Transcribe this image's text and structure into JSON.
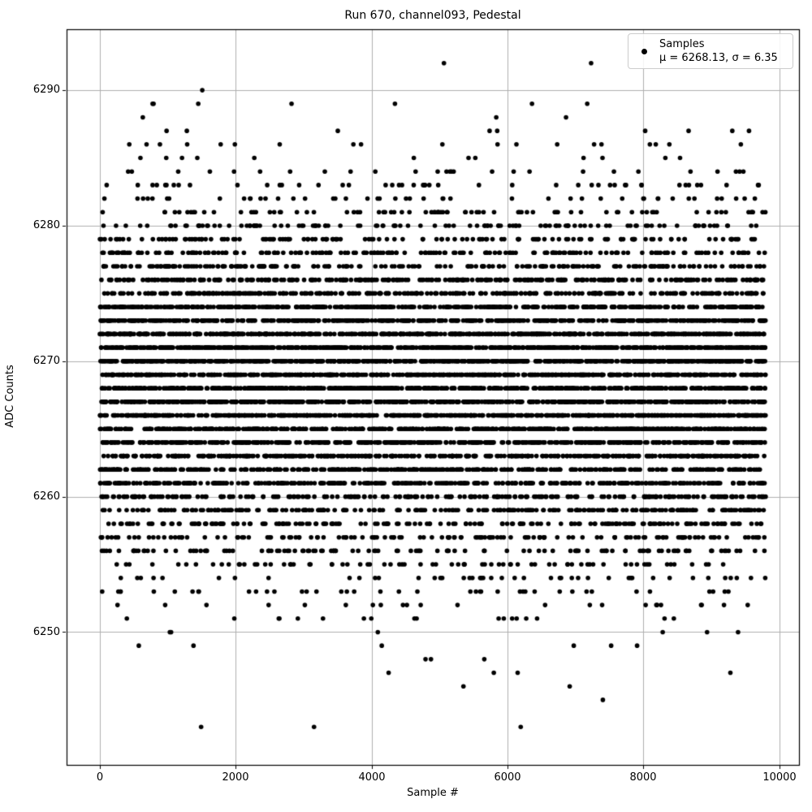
{
  "figure": {
    "background": "#ffffff",
    "text_color": "#000000"
  },
  "chart_data": {
    "type": "scatter",
    "title": "Run 670, channel093, Pedestal",
    "xlabel": "Sample #",
    "ylabel": "ADC Counts",
    "xlim": [
      -490,
      10290
    ],
    "ylim": [
      6240.2,
      6294.5
    ],
    "grid": true,
    "grid_color": "#b0b0b0",
    "spine_color": "#000000",
    "x_ticks": [
      0,
      2000,
      4000,
      6000,
      8000,
      10000
    ],
    "x_tick_labels": [
      "0",
      "2000",
      "4000",
      "6000",
      "8000",
      "10000"
    ],
    "y_ticks": [
      6290,
      6280,
      6270,
      6260,
      6250
    ],
    "y_tick_labels": [
      "6290",
      "6280",
      "6270",
      "6260",
      "6250"
    ],
    "legend": {
      "position": "upper right",
      "marker": "black-dot",
      "lines": [
        "Samples",
        "μ = 6268.13, σ = 6.35"
      ]
    },
    "series": [
      {
        "name": "Samples",
        "marker": "dot",
        "marker_color": "#000000",
        "marker_radius_px": 2.8,
        "n_samples": 9800,
        "x_description": "sequential sample index 0..9799",
        "y_distribution": "gaussian rounded to integer ADC counts",
        "mu": 6268.13,
        "sigma": 6.35,
        "y_min_observed": 6243,
        "y_max_observed": 6292,
        "seed": 1337,
        "notable_points": [
          [
            7230,
            6292
          ],
          [
            3152,
            6243
          ],
          [
            5351,
            6246
          ],
          [
            4343,
            6289
          ],
          [
            776,
            6289
          ],
          [
            790,
            6289
          ],
          [
            9280,
            6247
          ]
        ]
      }
    ]
  }
}
